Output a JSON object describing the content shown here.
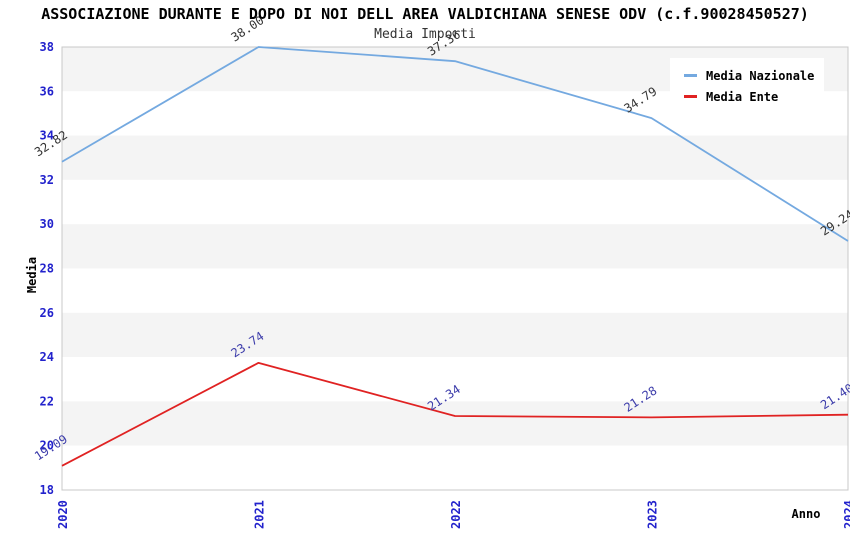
{
  "page": {
    "title": "ASSOCIAZIONE DURANTE E DOPO DI NOI DELL AREA VALDICHIANA SENESE ODV (c.f.90028450527)",
    "subtitle": "Media Importi"
  },
  "chart_data": {
    "type": "line",
    "title": "ASSOCIAZIONE DURANTE E DOPO DI NOI DELL AREA VALDICHIANA SENESE ODV (c.f.90028450527)",
    "subtitle": "Media Importi",
    "categories": [
      "2020",
      "2021",
      "2022",
      "2023",
      "2024"
    ],
    "series": [
      {
        "name": "Media Nazionale",
        "color": "#74a9e0",
        "label_color": "#333333",
        "values": [
          32.82,
          38.0,
          37.36,
          34.79,
          29.24
        ]
      },
      {
        "name": "Media Ente",
        "color": "#e02222",
        "label_color": "#3c3caa",
        "values": [
          19.09,
          23.74,
          21.34,
          21.28,
          21.4
        ]
      }
    ],
    "xlabel": "Anno",
    "ylabel": "Media",
    "ylim": [
      18,
      38
    ],
    "ytick_step": 2,
    "grid": "horizontal-bands",
    "legend_position": "top-right",
    "axis_tick_color": "#2222cc",
    "band_colors": [
      "#f4f4f4",
      "#ffffff"
    ],
    "plot_border_color": "#c8c8c8"
  }
}
